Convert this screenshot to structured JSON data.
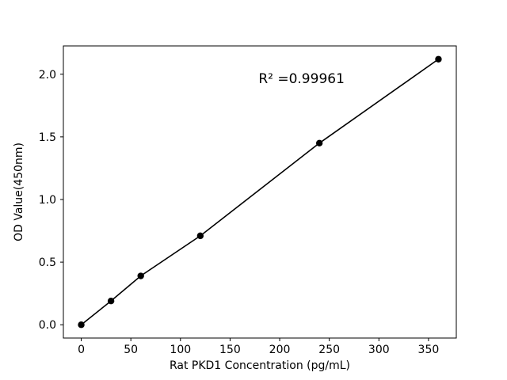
{
  "chart_data": {
    "type": "scatter",
    "title": "",
    "xlabel": "Rat PKD1 Concentration (pg/mL)",
    "ylabel": "OD Value(450nm)",
    "x": [
      0,
      30,
      60,
      120,
      240,
      360
    ],
    "y": [
      0.0,
      0.19,
      0.39,
      0.71,
      1.45,
      2.12
    ],
    "xlim": [
      -18,
      378
    ],
    "ylim": [
      -0.106,
      2.226
    ],
    "xticks": {
      "values": [
        0,
        50,
        100,
        150,
        200,
        250,
        300,
        350
      ],
      "labels": [
        "0",
        "50",
        "100",
        "150",
        "200",
        "250",
        "300",
        "350"
      ]
    },
    "yticks": {
      "values": [
        0.0,
        0.5,
        1.0,
        1.5,
        2.0
      ],
      "labels": [
        "0.0",
        "0.5",
        "1.0",
        "1.5",
        "2.0"
      ]
    },
    "annotation": {
      "text": "R² =0.99961",
      "x": 222,
      "y": 1.93
    },
    "grid": false,
    "legend": null,
    "line_color": "#000000",
    "marker_color": "#000000",
    "background": "#ffffff"
  }
}
